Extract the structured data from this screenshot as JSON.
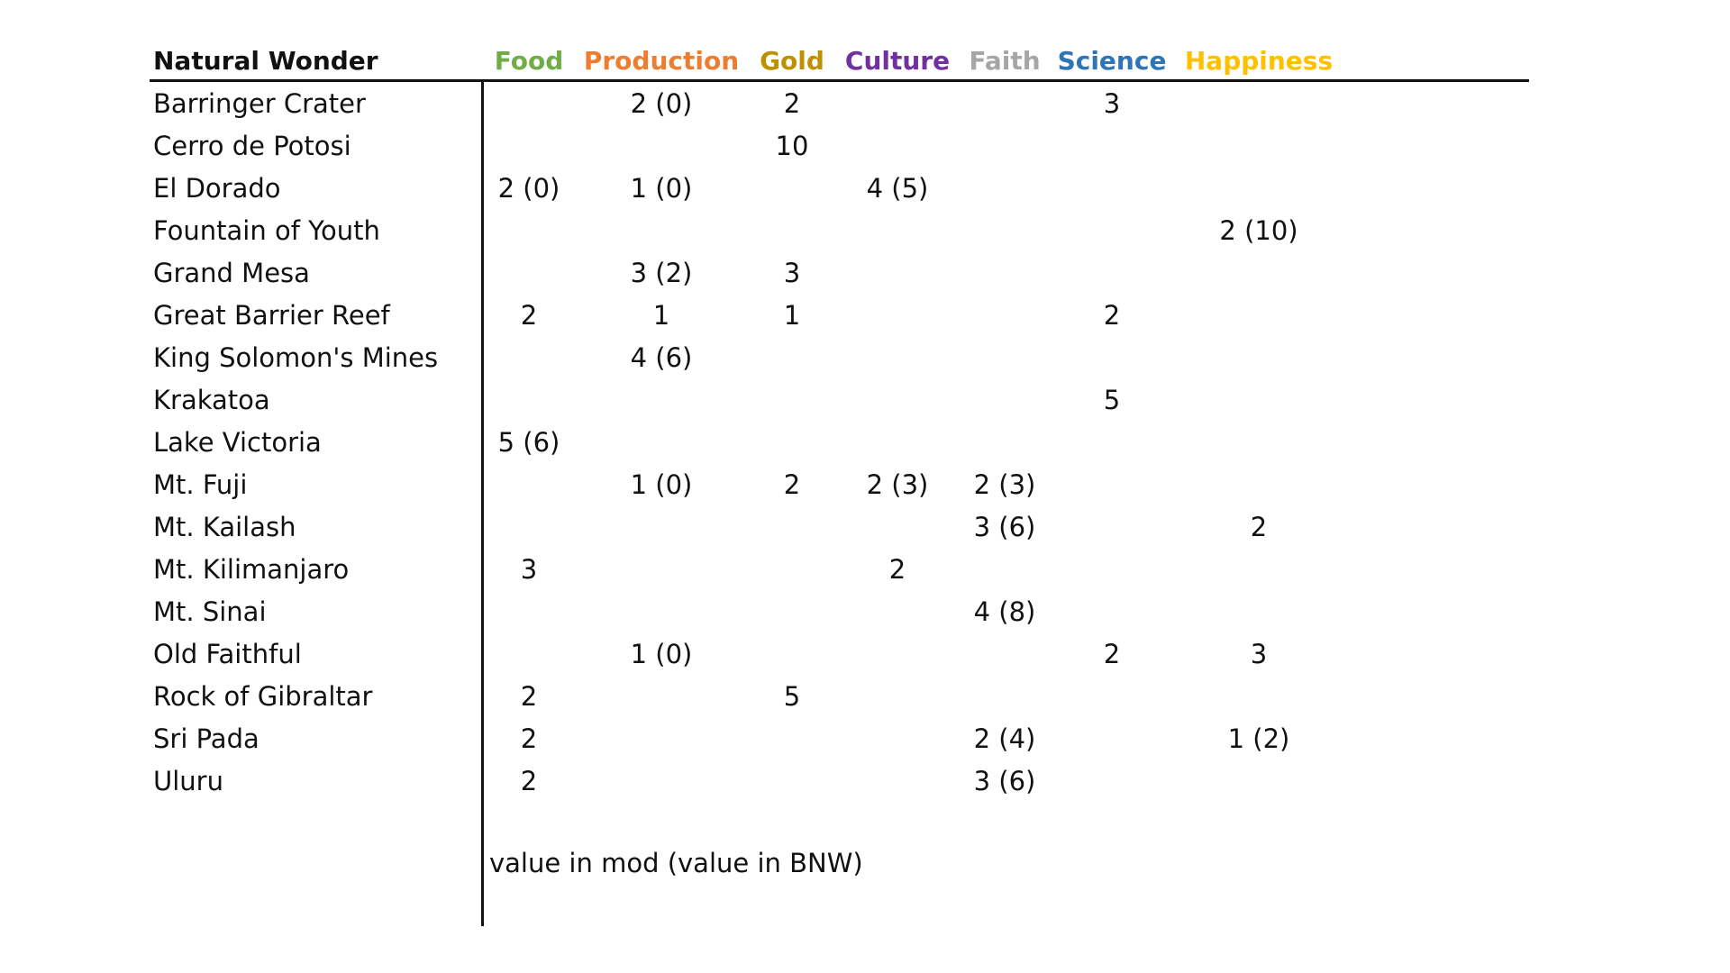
{
  "colors": {
    "text": "#111111",
    "food": "#70AD47",
    "production": "#ED7D31",
    "gold": "#BF9000",
    "culture": "#7030A0",
    "faith": "#A6A6A6",
    "science": "#2E75B6",
    "happiness": "#FFC000"
  },
  "header": {
    "name": "Natural Wonder",
    "food": "Food",
    "production": "Production",
    "gold": "Gold",
    "culture": "Culture",
    "faith": "Faith",
    "science": "Science",
    "happiness": "Happiness"
  },
  "rows": [
    {
      "name": "Barringer Crater",
      "food": "",
      "production": "2 (0)",
      "gold": "2",
      "culture": "",
      "faith": "",
      "science": "3",
      "happiness": ""
    },
    {
      "name": "Cerro de Potosi",
      "food": "",
      "production": "",
      "gold": "10",
      "culture": "",
      "faith": "",
      "science": "",
      "happiness": ""
    },
    {
      "name": "El Dorado",
      "food": "2 (0)",
      "production": "1 (0)",
      "gold": "",
      "culture": "4 (5)",
      "faith": "",
      "science": "",
      "happiness": ""
    },
    {
      "name": "Fountain of Youth",
      "food": "",
      "production": "",
      "gold": "",
      "culture": "",
      "faith": "",
      "science": "",
      "happiness": "2 (10)"
    },
    {
      "name": "Grand Mesa",
      "food": "",
      "production": "3 (2)",
      "gold": "3",
      "culture": "",
      "faith": "",
      "science": "",
      "happiness": ""
    },
    {
      "name": "Great Barrier Reef",
      "food": "2",
      "production": "1",
      "gold": "1",
      "culture": "",
      "faith": "",
      "science": "2",
      "happiness": ""
    },
    {
      "name": "King Solomon's Mines",
      "food": "",
      "production": "4 (6)",
      "gold": "",
      "culture": "",
      "faith": "",
      "science": "",
      "happiness": ""
    },
    {
      "name": "Krakatoa",
      "food": "",
      "production": "",
      "gold": "",
      "culture": "",
      "faith": "",
      "science": "5",
      "happiness": ""
    },
    {
      "name": "Lake Victoria",
      "food": "5 (6)",
      "production": "",
      "gold": "",
      "culture": "",
      "faith": "",
      "science": "",
      "happiness": ""
    },
    {
      "name": "Mt. Fuji",
      "food": "",
      "production": "1 (0)",
      "gold": "2",
      "culture": "2 (3)",
      "faith": "2 (3)",
      "science": "",
      "happiness": ""
    },
    {
      "name": "Mt. Kailash",
      "food": "",
      "production": "",
      "gold": "",
      "culture": "",
      "faith": "3 (6)",
      "science": "",
      "happiness": "2"
    },
    {
      "name": "Mt. Kilimanjaro",
      "food": "3",
      "production": "",
      "gold": "",
      "culture": "2",
      "faith": "",
      "science": "",
      "happiness": ""
    },
    {
      "name": "Mt. Sinai",
      "food": "",
      "production": "",
      "gold": "",
      "culture": "",
      "faith": "4 (8)",
      "science": "",
      "happiness": ""
    },
    {
      "name": "Old Faithful",
      "food": "",
      "production": "1 (0)",
      "gold": "",
      "culture": "",
      "faith": "",
      "science": "2",
      "happiness": "3"
    },
    {
      "name": "Rock of Gibraltar",
      "food": "2",
      "production": "",
      "gold": "5",
      "culture": "",
      "faith": "",
      "science": "",
      "happiness": ""
    },
    {
      "name": "Sri Pada",
      "food": "2",
      "production": "",
      "gold": "",
      "culture": "",
      "faith": "2 (4)",
      "science": "",
      "happiness": "1 (2)"
    },
    {
      "name": "Uluru",
      "food": "2",
      "production": "",
      "gold": "",
      "culture": "",
      "faith": "3 (6)",
      "science": "",
      "happiness": ""
    }
  ],
  "footnote": "value in mod (value in BNW)"
}
